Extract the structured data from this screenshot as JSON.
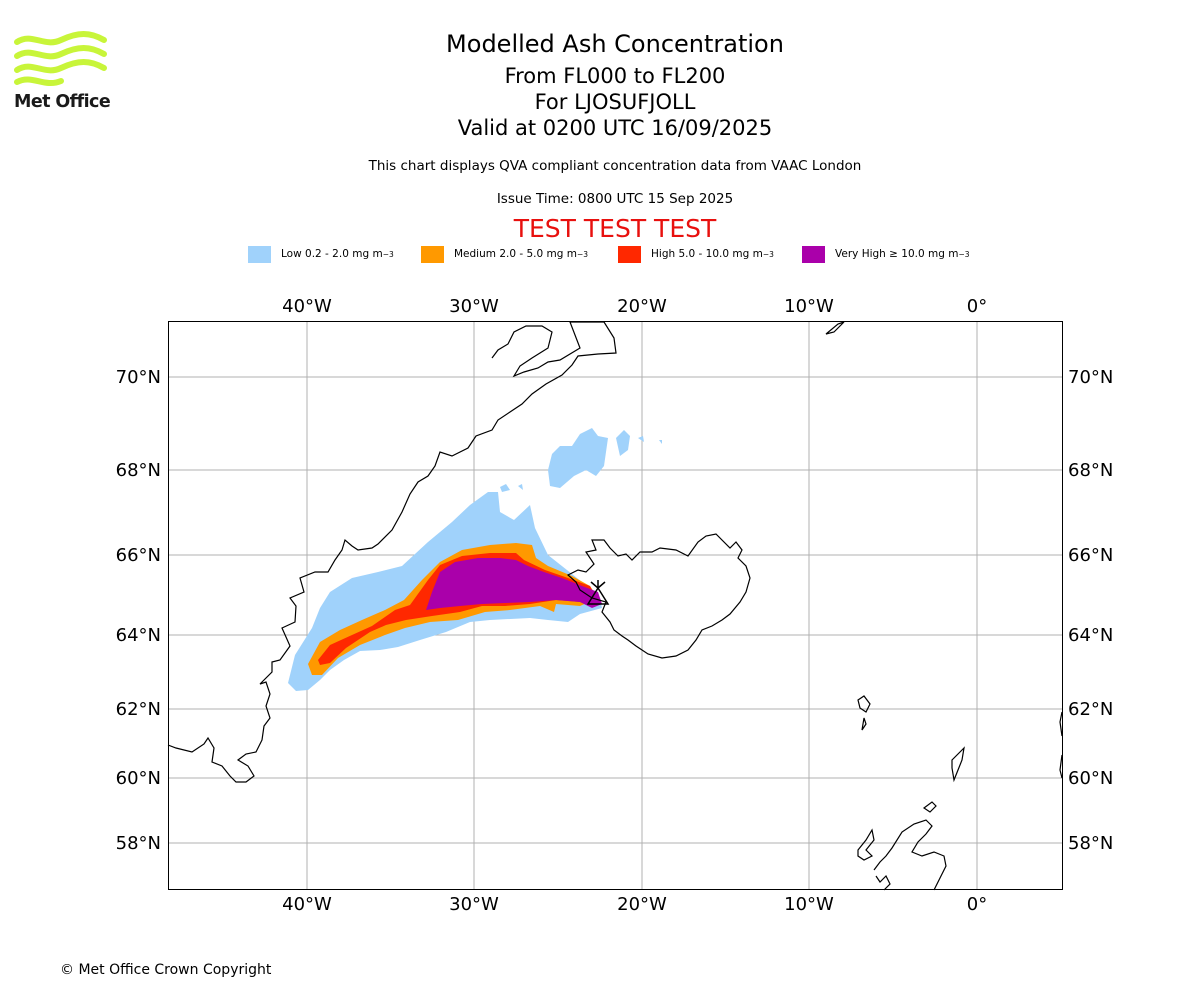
{
  "header": {
    "title": "Modelled Ash Concentration",
    "flight_levels": "From FL000 to FL200",
    "volcano": "For LJOSUFJOLL",
    "valid_time": "Valid at 0200 UTC 16/09/2025",
    "description": "This chart displays QVA compliant concentration data from VAAC London",
    "issue_time": "Issue Time: 0800 UTC 15 Sep 2025",
    "test_banner": "TEST TEST TEST"
  },
  "logo": {
    "text": "Met Office",
    "color": "#c8f53a"
  },
  "legend": [
    {
      "label": "Low 0.2 - 2.0 mg m",
      "unit_sup": "−3",
      "color": "#a0d2fb"
    },
    {
      "label": "Medium 2.0 - 5.0 mg m",
      "unit_sup": "−3",
      "color": "#ff9900"
    },
    {
      "label": "High 5.0 - 10.0 mg m",
      "unit_sup": "−3",
      "color": "#ff2800"
    },
    {
      "label": "Very High ≥ 10.0 mg m",
      "unit_sup": "−3",
      "color": "#aa00aa"
    }
  ],
  "map": {
    "lon_ticks": [
      "40°W",
      "30°W",
      "20°W",
      "10°W",
      "0°"
    ],
    "lat_ticks": [
      "70°N",
      "68°N",
      "66°N",
      "64°N",
      "62°N",
      "60°N",
      "58°N"
    ],
    "lon_range": [
      "48.3°W",
      "5.1°E"
    ],
    "lat_range": [
      "56.9°N",
      "71.2°N"
    ],
    "volcano_marker": "volcano-icon",
    "grid": true
  },
  "footer": {
    "copyright": "© Met Office Crown Copyright"
  }
}
